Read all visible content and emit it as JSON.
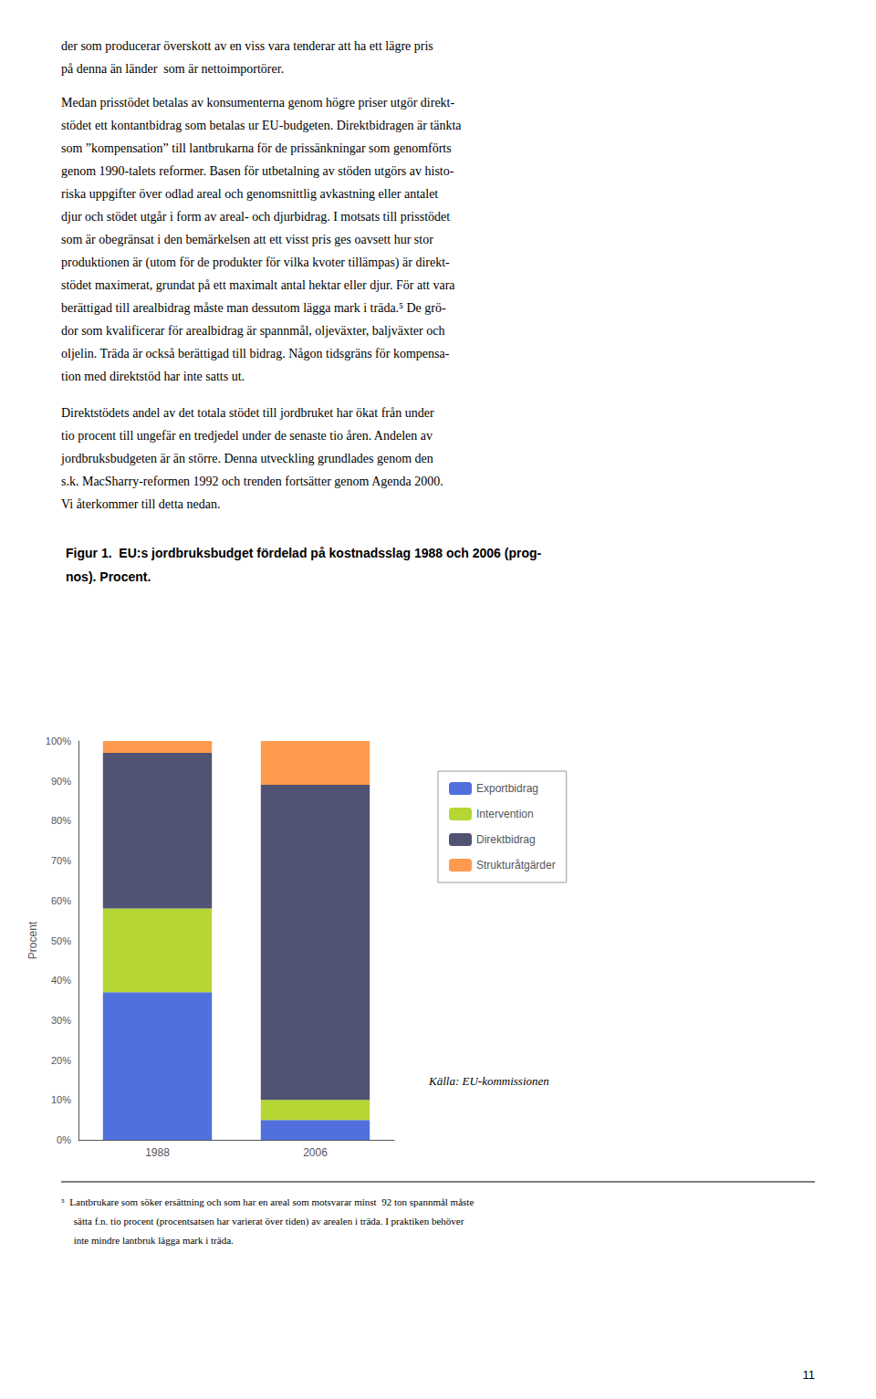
{
  "chart_data": {
    "type": "bar",
    "stacked": true,
    "title": "Figur 1.  EU:s jordbruksbudget fördelad på kostnadsslag 1988 och 2006 (prog-\nnos). Procent.",
    "categories": [
      "1988",
      "2006"
    ],
    "series": [
      {
        "name": "Exportbidrag",
        "values": [
          37,
          5
        ]
      },
      {
        "name": "Intervention",
        "values": [
          21,
          5
        ]
      },
      {
        "name": "Direktbidrag",
        "values": [
          39,
          79
        ]
      },
      {
        "name": "Strukturåtgärder",
        "values": [
          3,
          11
        ]
      }
    ],
    "ylabel": "Procent",
    "ylim": [
      0,
      100
    ],
    "yticks": [
      {
        "value": 0,
        "label": "0%"
      },
      {
        "value": 10,
        "label": "10%"
      },
      {
        "value": 20,
        "label": "20%"
      },
      {
        "value": 30,
        "label": "30%"
      },
      {
        "value": 40,
        "label": "40%"
      },
      {
        "value": 50,
        "label": "50%"
      },
      {
        "value": 60,
        "label": "60%"
      },
      {
        "value": 70,
        "label": "70%"
      },
      {
        "value": 80,
        "label": "80%"
      },
      {
        "value": 90,
        "label": "90%"
      },
      {
        "value": 100,
        "label": "100%"
      }
    ],
    "grid": false,
    "legend": "right",
    "annotations": [
      "der som producerar överskott av en viss vara tenderar att ha ett lägre pris\npå denna än länder  som är nettoimportörer.",
      "Medan prisstödet betalas av konsumenterna genom högre priser utgör direkt-\nstödet ett kontantbidrag som betalas ur EU-budgeten. Direktbidragen är tänkta\nsom ”kompensation” till lantbrukarna för de prissänkningar som genomförts\ngenom 1990-talets reformer. Basen för utbetalning av stöden utgörs av histo-\nriska uppgifter över odlad areal och genomsnittlig avkastning eller antalet\ndjur och stödet utgår i form av areal- och djurbidrag. I motsats till prisstödet\nsom är obegränsat i den bemärkelsen att ett visst pris ges oavsett hur stor\nproduktionen är (utom för de produkter för vilka kvoter tillämpas) är direkt-\nstödet maximerat, grundat på ett maximalt antal hektar eller djur. För att vara\nberättigad till arealbidrag måste man dessutom lägga mark i träda.⁵ De grö-\ndor som kvalificerar för arealbidrag är spannmål, oljeväxter, baljväxter och\noljelin. Träda är också berättigad till bidrag. Någon tidsgräns för kompensa-\ntion med direktstöd har inte satts ut.",
      "Direktstödets andel av det totala stödet till jordbruket har ökat från under\ntio procent till ungefär en tredjedel under de senaste tio åren. Andelen av\njordbruksbudgeten är än större. Denna utveckling grundlades genom den\ns.k. MacSharry-reformen 1992 och trenden fortsätter genom Agenda 2000.\nVi återkommer till detta nedan.",
      "Källa: EU-kommissionen",
      "⁵  Lantbrukare som söker ersättning och som har en areal som motsvarar minst  92 ton spannmål måste\n     sätta f.n. tio procent (procentsatsen har varierat över tiden) av arealen i träda. I praktiken behöver\n     inte mindre lantbruk lägga mark i träda.",
      "11"
    ]
  }
}
